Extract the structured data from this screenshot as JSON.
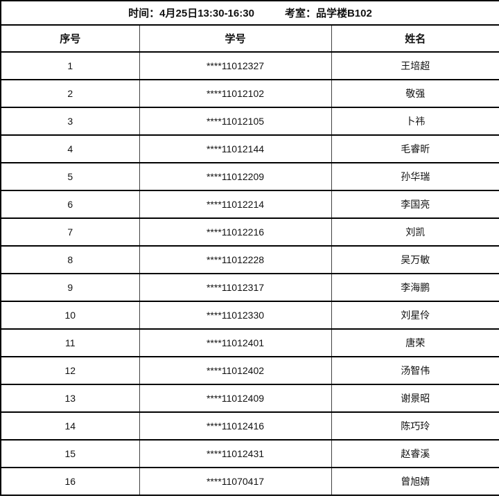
{
  "header": {
    "time_label": "时间：",
    "time_value": "4月25日13:30-16:30",
    "room_label": "考室：",
    "room_value": "品学楼B102"
  },
  "table": {
    "columns": [
      "序号",
      "学号",
      "姓名"
    ],
    "rows": [
      {
        "no": "1",
        "student_id": "****11012327",
        "name": "王培超"
      },
      {
        "no": "2",
        "student_id": "****11012102",
        "name": "敬强"
      },
      {
        "no": "3",
        "student_id": "****11012105",
        "name": "卜祎"
      },
      {
        "no": "4",
        "student_id": "****11012144",
        "name": "毛睿昕"
      },
      {
        "no": "5",
        "student_id": "****11012209",
        "name": "孙华瑞"
      },
      {
        "no": "6",
        "student_id": "****11012214",
        "name": "李国亮"
      },
      {
        "no": "7",
        "student_id": "****11012216",
        "name": "刘凯"
      },
      {
        "no": "8",
        "student_id": "****11012228",
        "name": "吴万敏"
      },
      {
        "no": "9",
        "student_id": "****11012317",
        "name": "李海鹏"
      },
      {
        "no": "10",
        "student_id": "****11012330",
        "name": "刘星伶"
      },
      {
        "no": "11",
        "student_id": "****11012401",
        "name": "唐荣"
      },
      {
        "no": "12",
        "student_id": "****11012402",
        "name": "汤智伟"
      },
      {
        "no": "13",
        "student_id": "****11012409",
        "name": "谢景昭"
      },
      {
        "no": "14",
        "student_id": "****11012416",
        "name": "陈巧玲"
      },
      {
        "no": "15",
        "student_id": "****11012431",
        "name": "赵睿溪"
      },
      {
        "no": "16",
        "student_id": "****11070417",
        "name": "曾旭婧"
      }
    ]
  }
}
